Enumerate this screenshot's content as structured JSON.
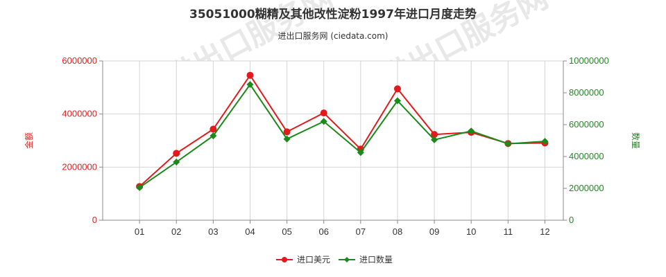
{
  "watermark": "进出口服务网",
  "chart_data": {
    "type": "line",
    "title": "35051000糊精及其他改性淀粉1997年进口月度走势",
    "subtitle": "进出口服务网 (ciedata.com)",
    "categories": [
      "01",
      "02",
      "03",
      "04",
      "05",
      "06",
      "07",
      "08",
      "09",
      "10",
      "11",
      "12"
    ],
    "left_axis": {
      "label": "金额",
      "ylim": [
        0,
        6000000
      ],
      "ticks": [
        "0",
        "2000000",
        "4000000",
        "6000000"
      ],
      "color": "#dd2222"
    },
    "right_axis": {
      "label": "数量",
      "ylim": [
        0,
        10000000
      ],
      "ticks": [
        "0",
        "2000000",
        "4000000",
        "6000000",
        "8000000",
        "10000000"
      ],
      "color": "#228822"
    },
    "series": [
      {
        "name": "进口美元",
        "axis": "left",
        "color": "#e31a1c",
        "values": [
          1270000,
          2520000,
          3430000,
          5460000,
          3330000,
          4040000,
          2680000,
          4950000,
          3230000,
          3310000,
          2890000,
          2910000
        ]
      },
      {
        "name": "进口数量",
        "axis": "right",
        "color": "#1a8a1a",
        "values": [
          2050000,
          3650000,
          5300000,
          8520000,
          5100000,
          6200000,
          4250000,
          7500000,
          5050000,
          5600000,
          4800000,
          4950000
        ]
      }
    ],
    "grid": true,
    "legend_position": "bottom-center"
  }
}
